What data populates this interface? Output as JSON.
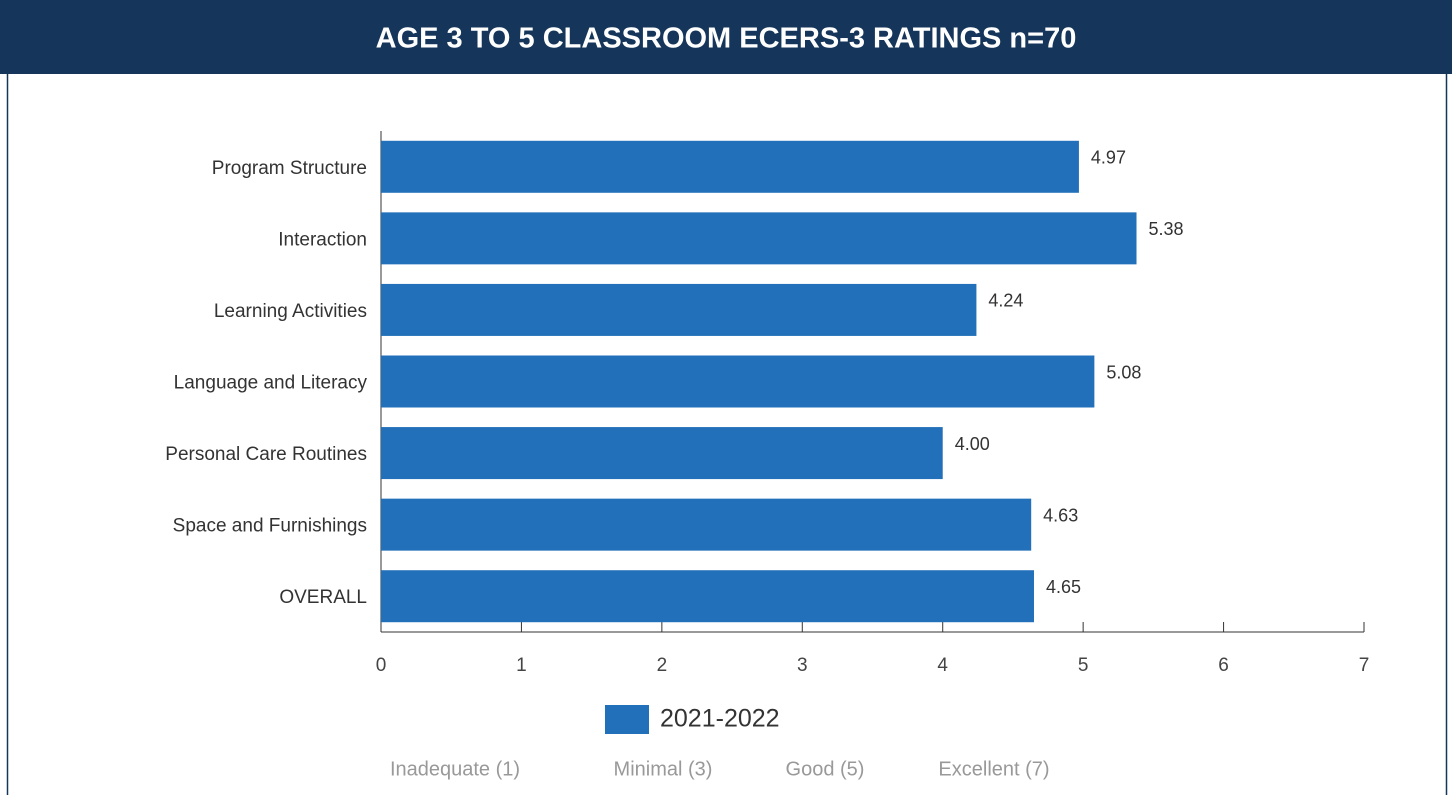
{
  "chart_data": {
    "type": "bar",
    "orientation": "horizontal",
    "title": "AGE 3 TO 5 CLASSROOM ECERS-3 RATINGS n=70",
    "categories": [
      "Program Structure",
      "Interaction",
      "Learning Activities",
      "Language and Literacy",
      "Personal Care Routines",
      "Space and Furnishings",
      "OVERALL"
    ],
    "series": [
      {
        "name": "2021-2022",
        "color": "#2370ba",
        "values": [
          4.97,
          5.38,
          4.24,
          5.08,
          4.0,
          4.63,
          4.65
        ],
        "value_labels": [
          "4.97",
          "5.38",
          "4.24",
          "5.08",
          "4.00",
          "4.63",
          "4.65"
        ]
      }
    ],
    "xlim": [
      0,
      7
    ],
    "xticks": [
      0,
      1,
      2,
      3,
      4,
      5,
      6,
      7
    ],
    "annotations": [
      "Inadequate (1)",
      "Minimal (3)",
      "Good (5)",
      "Excellent (7)"
    ]
  }
}
